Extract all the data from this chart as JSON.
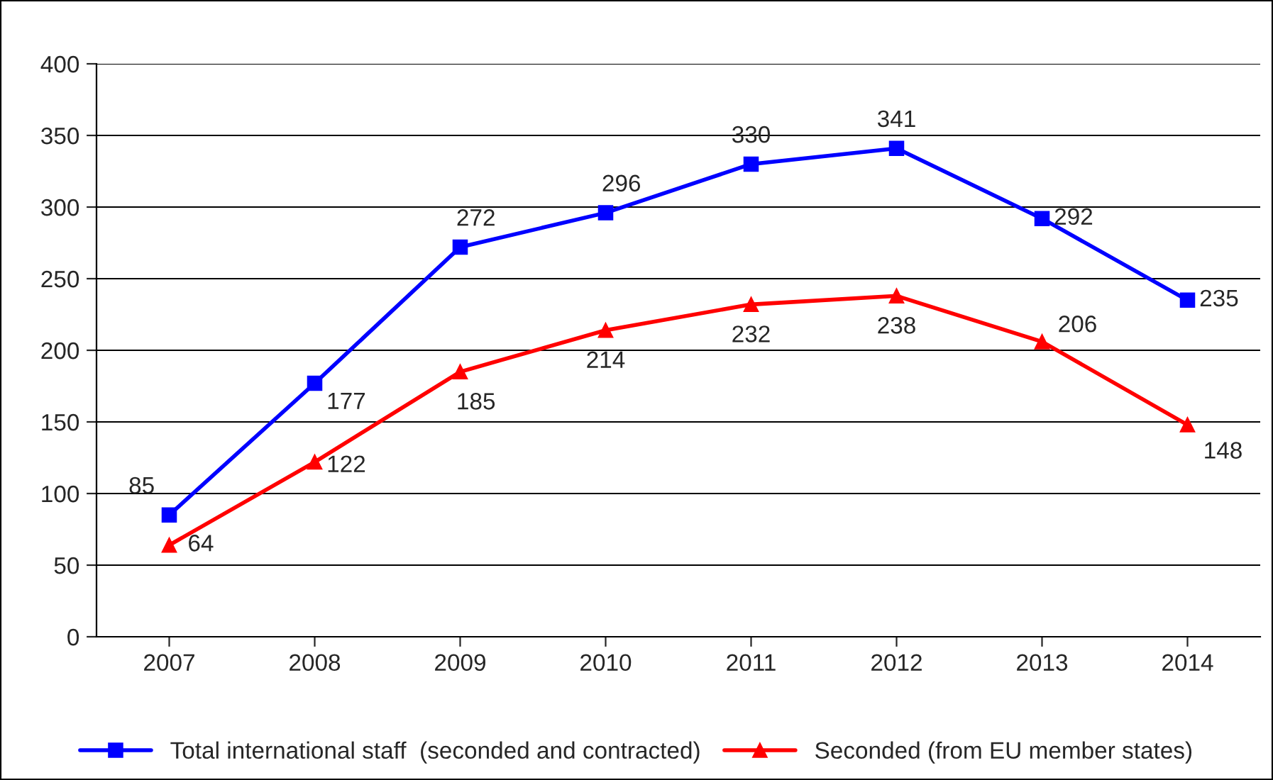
{
  "chart_data": {
    "type": "line",
    "categories": [
      "2007",
      "2008",
      "2009",
      "2010",
      "2011",
      "2012",
      "2013",
      "2014"
    ],
    "series": [
      {
        "name": "Total international staff  (seconded and contracted)",
        "color": "#0000ff",
        "marker": "square",
        "values": [
          85,
          177,
          272,
          296,
          330,
          341,
          292,
          235
        ]
      },
      {
        "name": "Seconded (from EU member states)",
        "color": "#ff0000",
        "marker": "triangle",
        "values": [
          64,
          122,
          185,
          214,
          232,
          238,
          206,
          148
        ]
      }
    ],
    "ylim": [
      0,
      400
    ],
    "yticks": [
      0,
      50,
      100,
      150,
      200,
      250,
      300,
      350,
      400
    ],
    "grid": "y",
    "legend": "bottom",
    "data_labels": true,
    "line_style": "solid"
  }
}
